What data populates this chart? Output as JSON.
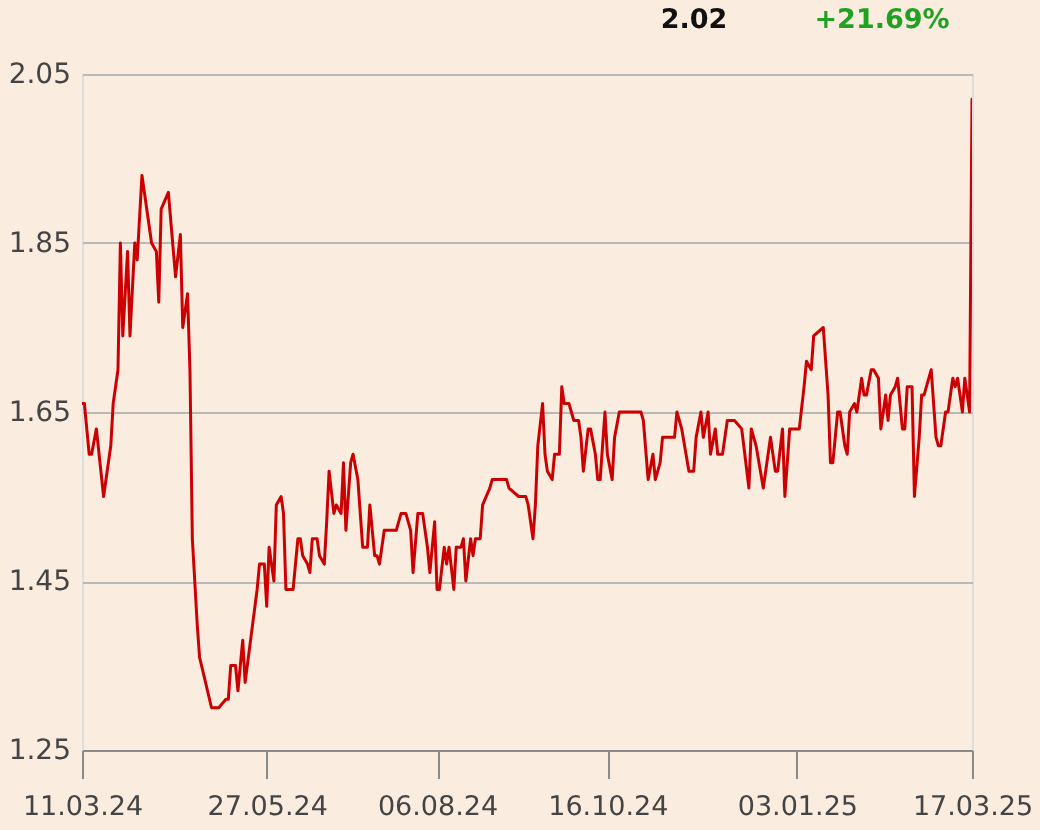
{
  "chart_data": {
    "type": "line",
    "annotations": [
      "2.02",
      "+21.69%"
    ],
    "color": "#cc0000",
    "grid": "y",
    "xlim": [
      "2024-03-11",
      "2025-03-17"
    ],
    "xticks": [
      {
        "value": "2024-03-11",
        "label": "11.03.24"
      },
      {
        "value": "2024-05-27",
        "label": "27.05.24"
      },
      {
        "value": "2024-08-06",
        "label": "06.08.24"
      },
      {
        "value": "2024-10-16",
        "label": "16.10.24"
      },
      {
        "value": "2025-01-03",
        "label": "03.01.25"
      },
      {
        "value": "2025-03-17",
        "label": "17.03.25"
      }
    ],
    "ylim": [
      1.25,
      2.05
    ],
    "yticks": [
      1.25,
      1.45,
      1.65,
      1.85,
      2.05
    ],
    "x": [
      "2024-03-11",
      "2024-03-12",
      "2024-03-14",
      "2024-03-15",
      "2024-03-17",
      "2024-03-20",
      "2024-03-23",
      "2024-03-24",
      "2024-03-26",
      "2024-03-27",
      "2024-03-28",
      "2024-03-30",
      "2024-03-31",
      "2024-04-02",
      "2024-04-03",
      "2024-04-05",
      "2024-04-06",
      "2024-04-09",
      "2024-04-11",
      "2024-04-12",
      "2024-04-13",
      "2024-04-16",
      "2024-04-19",
      "2024-04-21",
      "2024-04-22",
      "2024-04-24",
      "2024-04-25",
      "2024-04-26",
      "2024-04-28",
      "2024-04-29",
      "2024-05-04",
      "2024-05-07",
      "2024-05-10",
      "2024-05-11",
      "2024-05-12",
      "2024-05-14",
      "2024-05-15",
      "2024-05-17",
      "2024-05-18",
      "2024-05-23",
      "2024-05-24",
      "2024-05-26",
      "2024-05-27",
      "2024-05-28",
      "2024-05-30",
      "2024-05-31",
      "2024-06-02",
      "2024-06-03",
      "2024-06-04",
      "2024-06-07",
      "2024-06-09",
      "2024-06-10",
      "2024-06-11",
      "2024-06-13",
      "2024-06-14",
      "2024-06-15",
      "2024-06-17",
      "2024-06-18",
      "2024-06-20",
      "2024-06-21",
      "2024-06-22",
      "2024-06-24",
      "2024-06-25",
      "2024-06-27",
      "2024-06-28",
      "2024-06-29",
      "2024-07-01",
      "2024-07-02",
      "2024-07-04",
      "2024-07-05",
      "2024-07-06",
      "2024-07-08",
      "2024-07-09",
      "2024-07-11",
      "2024-07-12",
      "2024-07-13",
      "2024-07-15",
      "2024-07-20",
      "2024-07-22",
      "2024-07-24",
      "2024-07-26",
      "2024-07-27",
      "2024-07-29",
      "2024-07-31",
      "2024-08-02",
      "2024-08-03",
      "2024-08-05",
      "2024-08-06",
      "2024-08-07",
      "2024-08-09",
      "2024-08-10",
      "2024-08-11",
      "2024-08-13",
      "2024-08-14",
      "2024-08-16",
      "2024-08-17",
      "2024-08-18",
      "2024-08-20",
      "2024-08-21",
      "2024-08-22",
      "2024-08-24",
      "2024-08-25",
      "2024-08-28",
      "2024-08-29",
      "2024-09-04",
      "2024-09-05",
      "2024-09-09",
      "2024-09-12",
      "2024-09-13",
      "2024-09-15",
      "2024-09-16",
      "2024-09-17",
      "2024-09-19",
      "2024-09-20",
      "2024-09-21",
      "2024-09-23",
      "2024-09-24",
      "2024-09-26",
      "2024-09-27",
      "2024-09-28",
      "2024-09-30",
      "2024-10-01",
      "2024-10-02",
      "2024-10-04",
      "2024-10-05",
      "2024-10-06",
      "2024-10-08",
      "2024-10-09",
      "2024-10-11",
      "2024-10-12",
      "2024-10-13",
      "2024-10-15",
      "2024-10-16",
      "2024-10-18",
      "2024-10-19",
      "2024-10-21",
      "2024-10-30",
      "2024-10-31",
      "2024-11-02",
      "2024-11-04",
      "2024-11-05",
      "2024-11-07",
      "2024-11-08",
      "2024-11-13",
      "2024-11-14",
      "2024-11-16",
      "2024-11-19",
      "2024-11-21",
      "2024-11-22",
      "2024-11-24",
      "2024-11-25",
      "2024-11-27",
      "2024-11-28",
      "2024-11-30",
      "2024-12-01",
      "2024-12-03",
      "2024-12-05",
      "2024-12-08",
      "2024-12-11",
      "2024-12-14",
      "2024-12-15",
      "2024-12-17",
      "2024-12-20",
      "2024-12-22",
      "2024-12-23",
      "2024-12-25",
      "2024-12-26",
      "2024-12-28",
      "2024-12-29",
      "2024-12-31",
      "2025-01-04",
      "2025-01-06",
      "2025-01-07",
      "2025-01-09",
      "2025-01-10",
      "2025-01-14",
      "2025-01-16",
      "2025-01-17",
      "2025-01-18",
      "2025-01-20",
      "2025-01-21",
      "2025-01-23",
      "2025-01-24",
      "2025-01-25",
      "2025-01-27",
      "2025-01-28",
      "2025-01-30",
      "2025-01-31",
      "2025-02-01",
      "2025-02-03",
      "2025-02-04",
      "2025-02-06",
      "2025-02-07",
      "2025-02-09",
      "2025-02-10",
      "2025-02-11",
      "2025-02-13",
      "2025-02-14",
      "2025-02-16",
      "2025-02-17",
      "2025-02-18",
      "2025-02-20",
      "2025-02-21",
      "2025-02-23",
      "2025-02-24",
      "2025-02-25",
      "2025-02-27",
      "2025-02-28",
      "2025-03-02",
      "2025-03-03",
      "2025-03-04",
      "2025-03-06",
      "2025-03-07",
      "2025-03-09",
      "2025-03-10",
      "2025-03-11",
      "2025-03-13",
      "2025-03-14",
      "2025-03-16",
      "2025-03-17"
    ],
    "values": [
      1.66,
      1.66,
      1.6,
      1.6,
      1.63,
      1.55,
      1.61,
      1.66,
      1.7,
      1.85,
      1.74,
      1.84,
      1.74,
      1.85,
      1.83,
      1.93,
      1.91,
      1.85,
      1.84,
      1.78,
      1.89,
      1.91,
      1.81,
      1.86,
      1.75,
      1.79,
      1.7,
      1.5,
      1.4,
      1.36,
      1.3,
      1.3,
      1.31,
      1.31,
      1.35,
      1.35,
      1.32,
      1.38,
      1.33,
      1.44,
      1.47,
      1.47,
      1.42,
      1.49,
      1.45,
      1.54,
      1.55,
      1.53,
      1.44,
      1.44,
      1.5,
      1.5,
      1.48,
      1.47,
      1.46,
      1.5,
      1.5,
      1.48,
      1.47,
      1.52,
      1.58,
      1.53,
      1.54,
      1.53,
      1.59,
      1.51,
      1.59,
      1.6,
      1.57,
      1.53,
      1.49,
      1.49,
      1.54,
      1.48,
      1.48,
      1.47,
      1.51,
      1.51,
      1.53,
      1.53,
      1.51,
      1.46,
      1.53,
      1.53,
      1.49,
      1.46,
      1.52,
      1.44,
      1.44,
      1.49,
      1.47,
      1.49,
      1.44,
      1.49,
      1.49,
      1.5,
      1.45,
      1.5,
      1.48,
      1.5,
      1.5,
      1.54,
      1.56,
      1.57,
      1.57,
      1.56,
      1.55,
      1.55,
      1.54,
      1.5,
      1.54,
      1.61,
      1.66,
      1.6,
      1.58,
      1.57,
      1.6,
      1.6,
      1.68,
      1.66,
      1.66,
      1.65,
      1.64,
      1.64,
      1.62,
      1.58,
      1.63,
      1.63,
      1.6,
      1.57,
      1.57,
      1.65,
      1.6,
      1.57,
      1.62,
      1.65,
      1.65,
      1.64,
      1.57,
      1.6,
      1.57,
      1.59,
      1.62,
      1.62,
      1.65,
      1.63,
      1.58,
      1.58,
      1.62,
      1.65,
      1.62,
      1.65,
      1.6,
      1.63,
      1.6,
      1.6,
      1.64,
      1.64,
      1.63,
      1.56,
      1.63,
      1.61,
      1.56,
      1.6,
      1.62,
      1.58,
      1.58,
      1.63,
      1.55,
      1.63,
      1.63,
      1.68,
      1.71,
      1.7,
      1.74,
      1.75,
      1.67,
      1.59,
      1.59,
      1.65,
      1.65,
      1.61,
      1.6,
      1.65,
      1.66,
      1.65,
      1.69,
      1.67,
      1.67,
      1.7,
      1.7,
      1.69,
      1.63,
      1.67,
      1.64,
      1.67,
      1.68,
      1.69,
      1.63,
      1.63,
      1.68,
      1.68,
      1.55,
      1.62,
      1.67,
      1.67,
      1.69,
      1.7,
      1.62,
      1.61,
      1.61,
      1.65,
      1.65,
      1.69,
      1.68,
      1.69,
      1.65,
      1.69,
      1.65,
      2.02
    ]
  }
}
